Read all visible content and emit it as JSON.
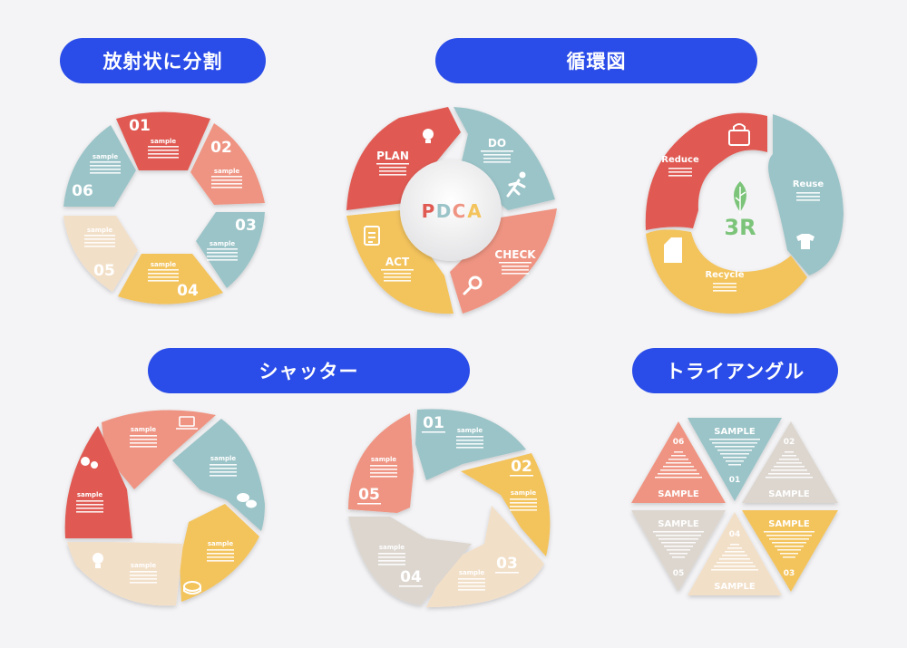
{
  "headers": {
    "radial": "放射状に分割",
    "cycle": "循環図",
    "shutter": "シャッター",
    "triangle": "トライアングル"
  },
  "radial": {
    "numbers": [
      "01",
      "02",
      "03",
      "04",
      "05",
      "06"
    ],
    "sample": "sample"
  },
  "pdca": {
    "center": [
      "P",
      "D",
      "C",
      "A"
    ],
    "labels": [
      "PLAN",
      "DO",
      "CHECK",
      "ACT"
    ]
  },
  "threeR": {
    "center": "3R",
    "labels": [
      "Reduce",
      "Reuse",
      "Recycle"
    ]
  },
  "shutterA": {
    "sample": "sample"
  },
  "shutterB": {
    "numbers": [
      "01",
      "02",
      "03",
      "04",
      "05"
    ],
    "sample": "sample"
  },
  "triangle": {
    "numbers": [
      "01",
      "02",
      "03",
      "04",
      "05",
      "06"
    ],
    "sample": "SAMPLE"
  },
  "colors": {
    "red": "#e05a52",
    "salmon": "#ef9482",
    "teal": "#9bc4c8",
    "yellow": "#f3c35c",
    "beige": "#f2dfc8",
    "gray": "#dcd6cf",
    "blue": "#2a4ce8",
    "green": "#7cc47a"
  },
  "icons": [
    "lightbulb-icon",
    "runner-icon",
    "magnifier-icon",
    "clipboard-icon",
    "bag-icon",
    "shirt-icon",
    "milk-carton-icon",
    "leaf-icon",
    "gears-icon",
    "laptop-icon",
    "chat-icon",
    "coins-icon"
  ]
}
